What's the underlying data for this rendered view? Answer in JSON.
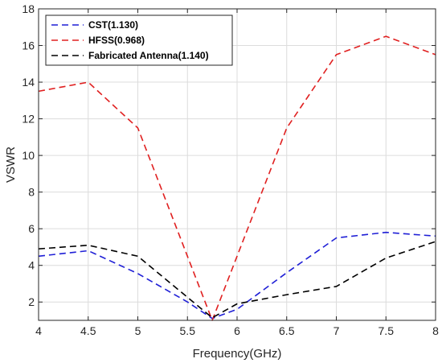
{
  "chart_data": {
    "type": "line",
    "title": "",
    "xlabel": "Frequency(GHz)",
    "ylabel": "VSWR",
    "xlim": [
      4,
      8
    ],
    "ylim": [
      1,
      18
    ],
    "xticks": [
      4,
      4.5,
      5,
      5.5,
      6,
      6.5,
      7,
      7.5,
      8
    ],
    "xtick_labels": [
      "4",
      "4.5",
      "5",
      "5.5",
      "6",
      "6.5",
      "7",
      "7.5",
      "8"
    ],
    "yticks": [
      2,
      4,
      6,
      8,
      10,
      12,
      14,
      16,
      18
    ],
    "ytick_labels": [
      "2",
      "4",
      "6",
      "8",
      "10",
      "12",
      "14",
      "16",
      "18"
    ],
    "grid": true,
    "legend_position": "top-left",
    "series": [
      {
        "name": "CST(1.130)",
        "color": "#1f1fd6",
        "line_style": "dashed",
        "x": [
          4,
          4.5,
          5,
          5.5,
          5.75,
          6,
          6.5,
          7,
          7.5,
          8
        ],
        "y": [
          4.5,
          4.8,
          3.55,
          2.0,
          1.1,
          1.6,
          3.6,
          5.5,
          5.8,
          5.6
        ]
      },
      {
        "name": "HFSS(0.968)",
        "color": "#e02020",
        "line_style": "dashed",
        "x": [
          4,
          4.5,
          5,
          5.75,
          6.5,
          7,
          7.5,
          8
        ],
        "y": [
          13.5,
          14.0,
          11.5,
          0.97,
          11.5,
          15.5,
          16.5,
          15.5
        ]
      },
      {
        "name": "Fabricated Antenna(1.140)",
        "color": "#000000",
        "line_style": "dashed",
        "x": [
          4,
          4.5,
          5,
          5.75,
          6,
          6.5,
          7,
          7.5,
          8
        ],
        "y": [
          4.9,
          5.1,
          4.5,
          1.14,
          1.9,
          2.4,
          2.85,
          4.4,
          5.3
        ]
      }
    ]
  }
}
